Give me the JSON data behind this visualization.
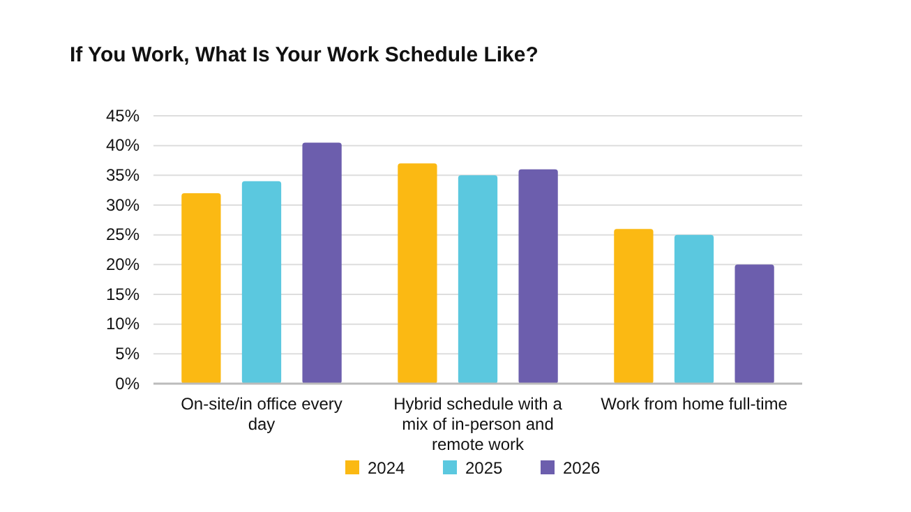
{
  "chart_data": {
    "type": "bar",
    "title": "If You Work, What Is Your Work Schedule Like?",
    "categories": [
      "On-site/in office every day",
      "Hybrid schedule with a mix of in-person and remote work",
      "Work from home full-time"
    ],
    "series": [
      {
        "name": "2024",
        "color": "#fbb913",
        "values": [
          32,
          37,
          26
        ]
      },
      {
        "name": "2025",
        "color": "#5bc8df",
        "values": [
          34,
          35,
          25
        ]
      },
      {
        "name": "2026",
        "color": "#6c5ead",
        "values": [
          40.5,
          36,
          20
        ]
      }
    ],
    "ylim": [
      0,
      45
    ],
    "yticks": [
      {
        "value": 0,
        "label": "0%"
      },
      {
        "value": 5,
        "label": "5%"
      },
      {
        "value": 10,
        "label": "10%"
      },
      {
        "value": 15,
        "label": "15%"
      },
      {
        "value": 20,
        "label": "20%"
      },
      {
        "value": 25,
        "label": "25%"
      },
      {
        "value": 30,
        "label": "30%"
      },
      {
        "value": 35,
        "label": "35%"
      },
      {
        "value": 40,
        "label": "40%"
      },
      {
        "value": 45,
        "label": "45%"
      }
    ],
    "grid": "y",
    "legend": "bottom"
  }
}
